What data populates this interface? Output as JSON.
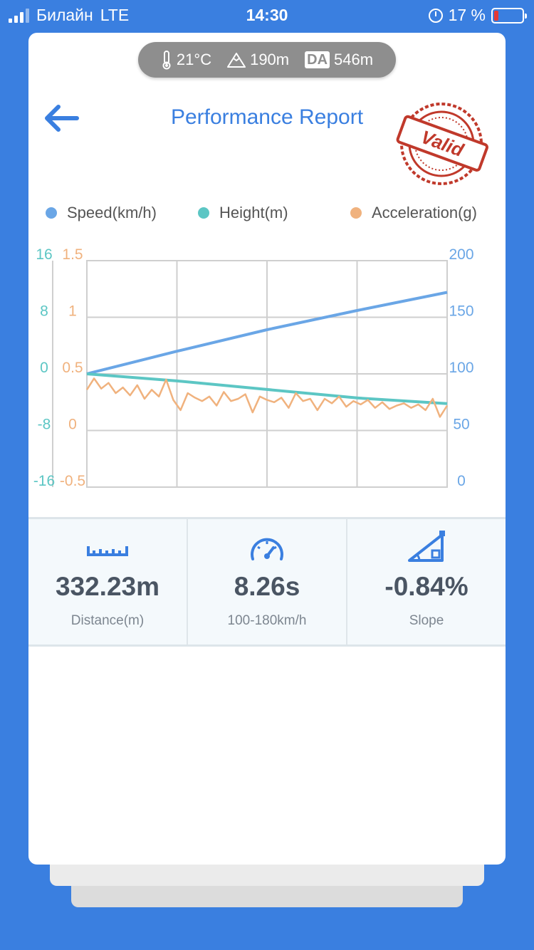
{
  "status_bar": {
    "carrier": "Билайн",
    "network": "LTE",
    "time": "14:30",
    "battery": "17 %",
    "icons": [
      "signal-icon",
      "alarm-icon",
      "battery-icon"
    ],
    "battery_level": 0.17
  },
  "conditions": {
    "temperature": "21°C",
    "altitude": "190m",
    "da_badge": "DA",
    "density_altitude": "546m"
  },
  "header": {
    "title": "Performance Report",
    "stamp": "Valid",
    "back_icon": "arrow-left-icon"
  },
  "colors": {
    "accent": "#3a7fe0",
    "speed": "#6aa6e6",
    "height": "#5cc6c4",
    "acceleration": "#f0b27e",
    "stamp": "#c0392b"
  },
  "chart_data": {
    "type": "line",
    "legend": [
      "Speed(km/h)",
      "Height(m)",
      "Acceleration(g)"
    ],
    "legend_position": "top",
    "grid": true,
    "axes": {
      "height_left": {
        "ticks": [
          "16",
          "8",
          "0",
          "-8",
          "-16"
        ],
        "range": [
          -16,
          16
        ]
      },
      "acceleration_left": {
        "ticks": [
          "1.5",
          "1",
          "0.5",
          "0",
          "-0.5"
        ],
        "range": [
          -0.5,
          1.5
        ]
      },
      "speed_right": {
        "ticks": [
          "200",
          "150",
          "100",
          "50",
          "0"
        ],
        "range": [
          0,
          200
        ]
      }
    },
    "series": [
      {
        "name": "Speed(km/h)",
        "axis": "speed_right",
        "x": [
          0,
          0.25,
          0.5,
          0.75,
          1.0
        ],
        "values": [
          100,
          120,
          139,
          156,
          172
        ]
      },
      {
        "name": "Height(m)",
        "axis": "height_left",
        "x": [
          0,
          0.25,
          0.5,
          0.75,
          1.0
        ],
        "values": [
          0,
          -1.0,
          -2.2,
          -3.4,
          -4.2
        ]
      },
      {
        "name": "Acceleration(g)",
        "axis": "acceleration_left",
        "x": [
          0,
          0.02,
          0.04,
          0.06,
          0.08,
          0.1,
          0.12,
          0.14,
          0.16,
          0.18,
          0.2,
          0.22,
          0.24,
          0.26,
          0.28,
          0.3,
          0.32,
          0.34,
          0.36,
          0.38,
          0.4,
          0.42,
          0.44,
          0.46,
          0.48,
          0.5,
          0.52,
          0.54,
          0.56,
          0.58,
          0.6,
          0.62,
          0.64,
          0.66,
          0.68,
          0.7,
          0.72,
          0.74,
          0.76,
          0.78,
          0.8,
          0.82,
          0.84,
          0.86,
          0.88,
          0.9,
          0.92,
          0.94,
          0.96,
          0.98,
          1.0
        ],
        "values": [
          0.36,
          0.46,
          0.37,
          0.42,
          0.33,
          0.38,
          0.31,
          0.4,
          0.28,
          0.36,
          0.3,
          0.45,
          0.27,
          0.18,
          0.33,
          0.29,
          0.26,
          0.3,
          0.22,
          0.34,
          0.26,
          0.28,
          0.32,
          0.16,
          0.3,
          0.27,
          0.25,
          0.29,
          0.2,
          0.33,
          0.26,
          0.28,
          0.18,
          0.28,
          0.24,
          0.3,
          0.21,
          0.26,
          0.23,
          0.27,
          0.2,
          0.25,
          0.19,
          0.22,
          0.24,
          0.2,
          0.23,
          0.18,
          0.28,
          0.12,
          0.22
        ]
      }
    ]
  },
  "stats": [
    {
      "icon": "ruler-icon",
      "value": "332.23m",
      "label": "Distance(m)"
    },
    {
      "icon": "speedometer-icon",
      "value": "8.26s",
      "label": "100-180km/h"
    },
    {
      "icon": "slope-icon",
      "value": "-0.84%",
      "label": "Slope"
    }
  ]
}
